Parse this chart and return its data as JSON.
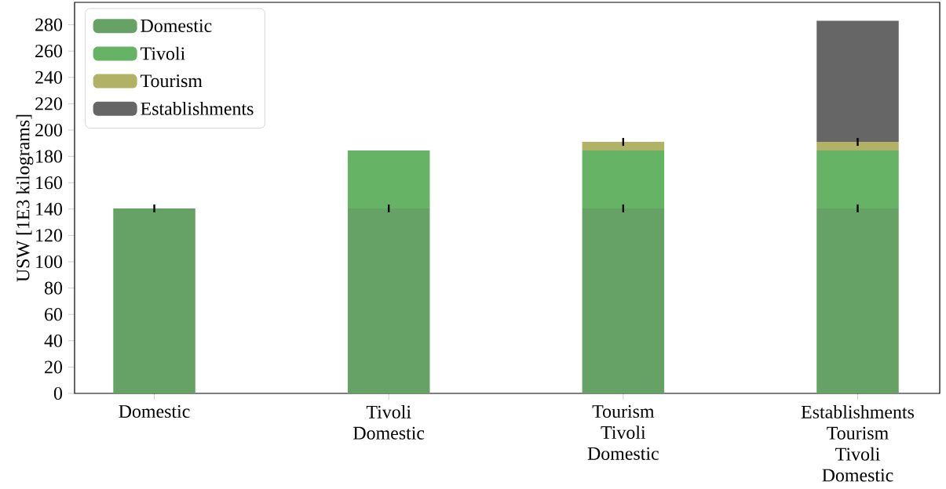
{
  "chart_data": {
    "type": "bar",
    "stacked": true,
    "ylabel": "USW [1E3 kilograms]",
    "categories": [
      "Domestic",
      "Tivoli\nDomestic",
      "Tourism\nTivoli\nDomestic",
      "Establishments\nTourism\nTivoli\nDomestic"
    ],
    "series": [
      {
        "name": "Domestic",
        "color": "#66a266",
        "values": [
          140.5,
          140.5,
          140.5,
          140.5
        ],
        "errors": [
          3,
          3,
          3,
          3
        ]
      },
      {
        "name": "Tivoli",
        "color": "#66b366",
        "values": [
          null,
          44,
          44,
          44
        ]
      },
      {
        "name": "Tourism",
        "color": "#b2b266",
        "values": [
          null,
          null,
          6.5,
          6.5
        ],
        "errors": [
          null,
          null,
          3,
          3
        ]
      },
      {
        "name": "Establishments",
        "color": "#666666",
        "values": [
          null,
          null,
          null,
          92
        ]
      }
    ],
    "ylim": [
      0,
      297
    ],
    "yticks": [
      0,
      20,
      40,
      60,
      80,
      100,
      120,
      140,
      160,
      180,
      200,
      220,
      240,
      260,
      280
    ],
    "legend": "top left",
    "grid": false
  }
}
